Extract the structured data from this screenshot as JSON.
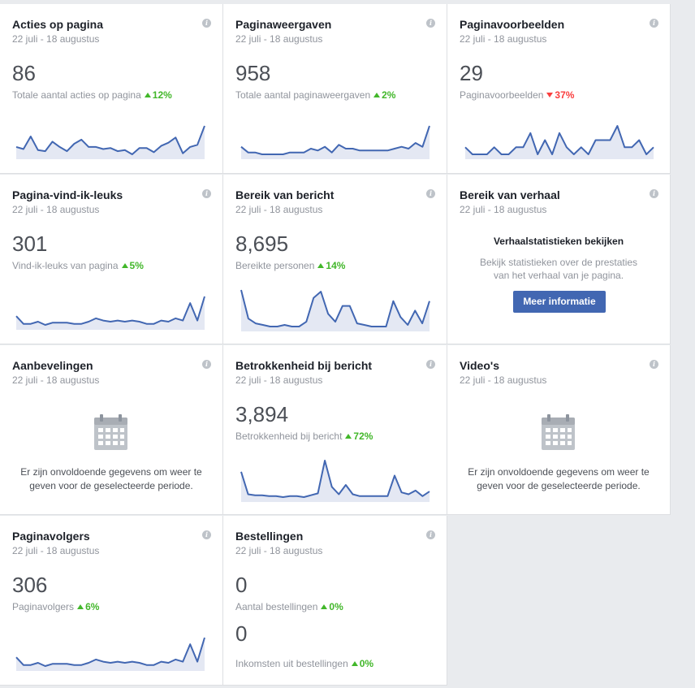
{
  "cards": {
    "acties": {
      "title": "Acties op pagina",
      "date": "22 juli - 18 augustus",
      "value": "86",
      "label": "Totale aantal acties op pagina",
      "change": "12%",
      "direction": "up",
      "trend": [
        5,
        3,
        15,
        2,
        1,
        10,
        5,
        1,
        8,
        12,
        5,
        5,
        3,
        4,
        1,
        2,
        -2,
        4,
        4,
        0,
        6,
        9,
        14,
        -1,
        5,
        7,
        25
      ]
    },
    "weergaven": {
      "title": "Paginaweergaven",
      "date": "22 juli - 18 augustus",
      "value": "958",
      "label": "Totale aantal paginaweergaven",
      "change": "2%",
      "direction": "up",
      "trend": [
        12,
        6,
        6,
        4,
        4,
        4,
        4,
        6,
        6,
        6,
        10,
        8,
        12,
        6,
        14,
        10,
        10,
        8,
        8,
        8,
        8,
        8,
        10,
        12,
        10,
        16,
        12,
        34
      ]
    },
    "voorbeelden": {
      "title": "Paginavoorbeelden",
      "date": "22 juli - 18 augustus",
      "value": "29",
      "label": "Paginavoorbeelden",
      "change": "37%",
      "direction": "down",
      "trend": [
        2,
        0,
        0,
        0,
        2,
        0,
        0,
        2,
        2,
        6,
        0,
        4,
        0,
        6,
        2,
        0,
        2,
        0,
        4,
        4,
        4,
        8,
        2,
        2,
        4,
        0,
        2
      ]
    },
    "leuks": {
      "title": "Pagina-vind-ik-leuks",
      "date": "22 juli - 18 augustus",
      "value": "301",
      "label": "Vind-ik-leuks van pagina",
      "change": "5%",
      "direction": "up",
      "trend": [
        10,
        3,
        3,
        5,
        2,
        4,
        4,
        4,
        3,
        3,
        5,
        8,
        6,
        5,
        6,
        5,
        6,
        5,
        3,
        3,
        6,
        5,
        8,
        6,
        22,
        6,
        28
      ]
    },
    "bereik": {
      "title": "Bereik van bericht",
      "date": "22 juli - 18 augustus",
      "value": "8,695",
      "label": "Bereikte personen",
      "change": "14%",
      "direction": "up",
      "trend": [
        48,
        12,
        6,
        4,
        2,
        2,
        4,
        2,
        2,
        8,
        38,
        46,
        18,
        8,
        28,
        28,
        6,
        4,
        2,
        2,
        2,
        34,
        14,
        4,
        22,
        6,
        34
      ]
    },
    "verhaal": {
      "title": "Bereik van verhaal",
      "date": "22 juli - 18 augustus",
      "heading": "Verhaalstatistieken bekijken",
      "body": "Bekijk statistieken over de prestaties van het verhaal van je pagina.",
      "button": "Meer informatie"
    },
    "aanbevelingen": {
      "title": "Aanbevelingen",
      "date": "22 juli - 18 augustus",
      "message": "Er zijn onvoldoende gegevens om weer te geven voor de geselecteerde periode."
    },
    "betrokkenheid": {
      "title": "Betrokkenheid bij bericht",
      "date": "22 juli - 18 augustus",
      "value": "3,894",
      "label": "Betrokkenheid bij bericht",
      "change": "72%",
      "direction": "up",
      "trend": [
        28,
        4,
        3,
        3,
        2,
        2,
        1,
        2,
        2,
        1,
        3,
        5,
        40,
        12,
        4,
        14,
        4,
        2,
        2,
        2,
        2,
        2,
        24,
        6,
        4,
        8,
        2,
        7
      ]
    },
    "videos": {
      "title": "Video's",
      "date": "22 juli - 18 augustus",
      "message": "Er zijn onvoldoende gegevens om weer te geven voor de geselecteerde periode."
    },
    "volgers": {
      "title": "Paginavolgers",
      "date": "22 juli - 18 augustus",
      "value": "306",
      "label": "Paginavolgers",
      "change": "6%",
      "direction": "up",
      "trend": [
        10,
        3,
        3,
        5,
        2,
        4,
        4,
        4,
        3,
        3,
        5,
        8,
        6,
        5,
        6,
        5,
        6,
        5,
        3,
        3,
        6,
        5,
        8,
        6,
        22,
        6,
        28
      ]
    },
    "bestellingen": {
      "title": "Bestellingen",
      "date": "22 juli - 18 augustus",
      "value": "0",
      "label": "Aantal bestellingen",
      "change": "0%",
      "direction": "up",
      "value2": "0",
      "label2": "Inkomsten uit bestellingen",
      "change2": "0%"
    }
  },
  "colors": {
    "line": "#4267b2",
    "fill": "#e4e8f3",
    "up": "#42b72a",
    "down": "#fa3e3e"
  },
  "icons": {
    "info": "info-icon",
    "calendar": "calendar-icon",
    "trend_up": "triangle-up-icon",
    "trend_down": "triangle-down-icon"
  }
}
